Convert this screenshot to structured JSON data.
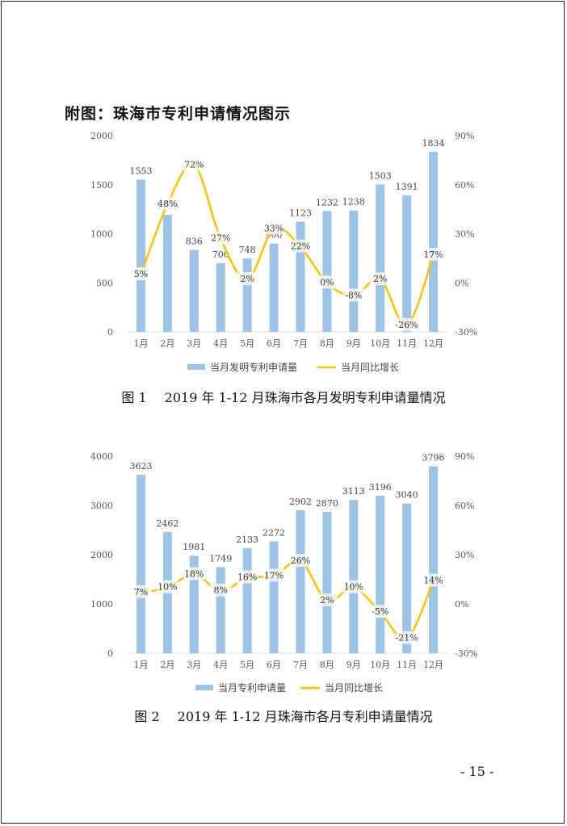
{
  "heading": "附图：珠海市专利申请情况图示",
  "page_number": "- 15 -",
  "captions": [
    {
      "num": "图 1",
      "text": "2019 年 1-12 月珠海市各月发明专利申请量情况"
    },
    {
      "num": "图 2",
      "text": "2019 年 1-12 月珠海市各月专利申请量情况"
    }
  ],
  "colors": {
    "bar": "#9dc3e6",
    "line": "#ffc000"
  },
  "chart_data": [
    {
      "type": "bar",
      "title": "",
      "categories": [
        "1月",
        "2月",
        "3月",
        "4月",
        "5月",
        "6月",
        "7月",
        "8月",
        "9月",
        "10月",
        "11月",
        "12月"
      ],
      "series": [
        {
          "name": "当月发明专利申请量",
          "type": "bar",
          "axis": "left",
          "values": [
            1553,
            1193,
            836,
            700,
            748,
            900,
            1123,
            1232,
            1238,
            1503,
            1391,
            1834
          ],
          "labels": [
            "1553",
            "1193",
            "836",
            "700",
            "748",
            "900",
            "1123",
            "1232",
            "1238",
            "1503",
            "1391",
            "1834"
          ]
        },
        {
          "name": "当月同比增长",
          "type": "line",
          "axis": "right",
          "values": [
            5,
            48,
            72,
            27,
            2,
            33,
            22,
            0,
            -8,
            2,
            -26,
            17
          ],
          "labels": [
            "5%",
            "48%",
            "72%",
            "27%",
            "2%",
            "33%",
            "22%",
            "0%",
            "-8%",
            "2%",
            "-26%",
            "17%"
          ]
        }
      ],
      "ylim": [
        0,
        2000
      ],
      "yticks": [
        "0",
        "500",
        "1000",
        "1500",
        "2000"
      ],
      "y2lim": [
        -30,
        90
      ],
      "y2ticks": [
        "-30%",
        "0%",
        "30%",
        "60%",
        "90%"
      ],
      "legend": "bottom"
    },
    {
      "type": "bar",
      "title": "",
      "categories": [
        "1月",
        "2月",
        "3月",
        "4月",
        "5月",
        "6月",
        "7月",
        "8月",
        "9月",
        "10月",
        "11月",
        "12月"
      ],
      "series": [
        {
          "name": "当月专利申请量",
          "type": "bar",
          "axis": "left",
          "values": [
            3623,
            2462,
            1981,
            1749,
            2133,
            2272,
            2902,
            2870,
            3113,
            3196,
            3040,
            3796
          ],
          "labels": [
            "3623",
            "2462",
            "1981",
            "1749",
            "2133",
            "2272",
            "2902",
            "2870",
            "3113",
            "3196",
            "3040",
            "3796"
          ]
        },
        {
          "name": "当月同比增长",
          "type": "line",
          "axis": "right",
          "values": [
            7,
            10,
            18,
            8,
            16,
            17,
            26,
            2,
            10,
            -5,
            -21,
            14
          ],
          "labels": [
            "7%",
            "10%",
            "18%",
            "8%",
            "16%",
            "17%",
            "26%",
            "2%",
            "10%",
            "-5%",
            "-21%",
            "14%"
          ]
        }
      ],
      "ylim": [
        0,
        4000
      ],
      "yticks": [
        "0",
        "1000",
        "2000",
        "3000",
        "4000"
      ],
      "y2lim": [
        -30,
        90
      ],
      "y2ticks": [
        "-30%",
        "0%",
        "30%",
        "60%",
        "90%"
      ],
      "legend": "bottom"
    }
  ]
}
